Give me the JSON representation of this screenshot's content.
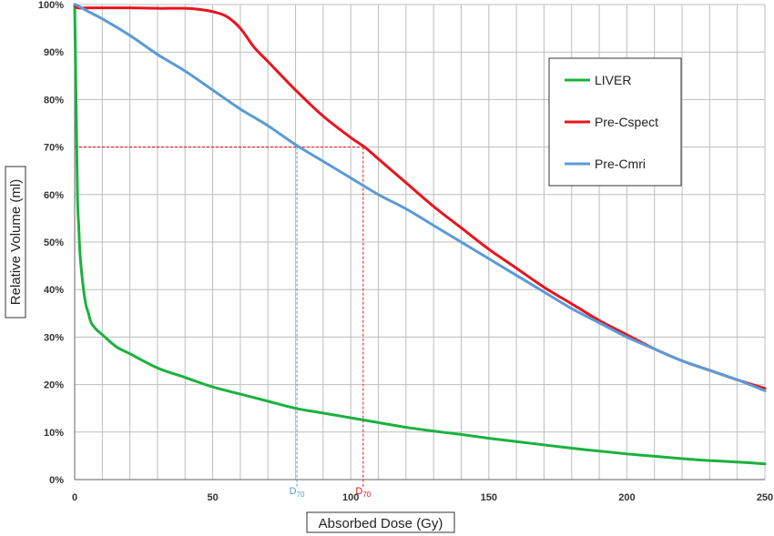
{
  "chart_data": {
    "type": "line",
    "xlabel": "Absorbed Dose (Gy)",
    "ylabel": "Relative Volume (ml)",
    "xlim": [
      0,
      250
    ],
    "ylim": [
      0,
      100
    ],
    "x_ticks": [
      0,
      50,
      100,
      150,
      200,
      250
    ],
    "y_ticks": [
      0,
      10,
      20,
      30,
      40,
      50,
      60,
      70,
      80,
      90,
      100
    ],
    "y_tick_labels": [
      "0%",
      "10%",
      "20%",
      "30%",
      "40%",
      "50%",
      "60%",
      "70%",
      "80%",
      "90%",
      "100%"
    ],
    "grid": true,
    "legend_position": "top-right",
    "series": [
      {
        "name": "LIVER",
        "color": "#1bb13e",
        "x": [
          0,
          0.5,
          1,
          1.5,
          2,
          3,
          4,
          5,
          6,
          8,
          10,
          15,
          20,
          30,
          40,
          50,
          60,
          70,
          80,
          90,
          100,
          110,
          120,
          130,
          140,
          150,
          160,
          170,
          180,
          190,
          200,
          210,
          220,
          230,
          240,
          250
        ],
        "y": [
          100,
          80,
          60,
          53,
          47,
          41,
          37,
          35,
          33,
          31.5,
          30.5,
          28,
          26.5,
          23.5,
          21.5,
          19.5,
          18,
          16.5,
          15,
          14,
          13,
          12,
          11,
          10.2,
          9.5,
          8.7,
          8,
          7.3,
          6.6,
          6,
          5.4,
          4.9,
          4.4,
          4,
          3.7,
          3.3
        ]
      },
      {
        "name": "Pre-Cspect",
        "color": "#e8141e",
        "x": [
          0,
          1,
          5,
          10,
          20,
          30,
          40,
          45,
          50,
          55,
          60,
          65,
          70,
          80,
          90,
          100,
          105,
          110,
          120,
          130,
          140,
          150,
          160,
          170,
          180,
          190,
          200,
          210,
          220,
          230,
          240,
          250
        ],
        "y": [
          100,
          99.3,
          99.3,
          99.3,
          99.3,
          99.2,
          99.2,
          99,
          98.5,
          97.5,
          95,
          91,
          88,
          82,
          76.5,
          72,
          70,
          67.5,
          62.5,
          57.5,
          53,
          48.5,
          44.5,
          40.5,
          37,
          33.5,
          30.5,
          27.5,
          25,
          23,
          21,
          19.2
        ]
      },
      {
        "name": "Pre-Cmri",
        "color": "#5b9bd5",
        "x": [
          0,
          1,
          5,
          10,
          20,
          30,
          40,
          50,
          60,
          70,
          80,
          90,
          100,
          110,
          120,
          130,
          140,
          150,
          160,
          170,
          180,
          190,
          200,
          210,
          220,
          230,
          240,
          250
        ],
        "y": [
          100,
          99.8,
          98.5,
          97,
          93.5,
          89.5,
          86,
          82,
          78,
          74.5,
          70.5,
          67,
          63.5,
          60,
          57,
          53.5,
          50,
          46.5,
          43,
          39.5,
          36,
          33,
          30,
          27.5,
          25,
          23,
          21,
          18.7
        ]
      }
    ],
    "annotations": [
      {
        "label": "D",
        "sub": "70",
        "x": 80.5,
        "color": "#5b9bd5",
        "level": 70
      },
      {
        "label": "D",
        "sub": "70",
        "x": 104.5,
        "color": "#e8141e",
        "level": 70
      }
    ]
  }
}
